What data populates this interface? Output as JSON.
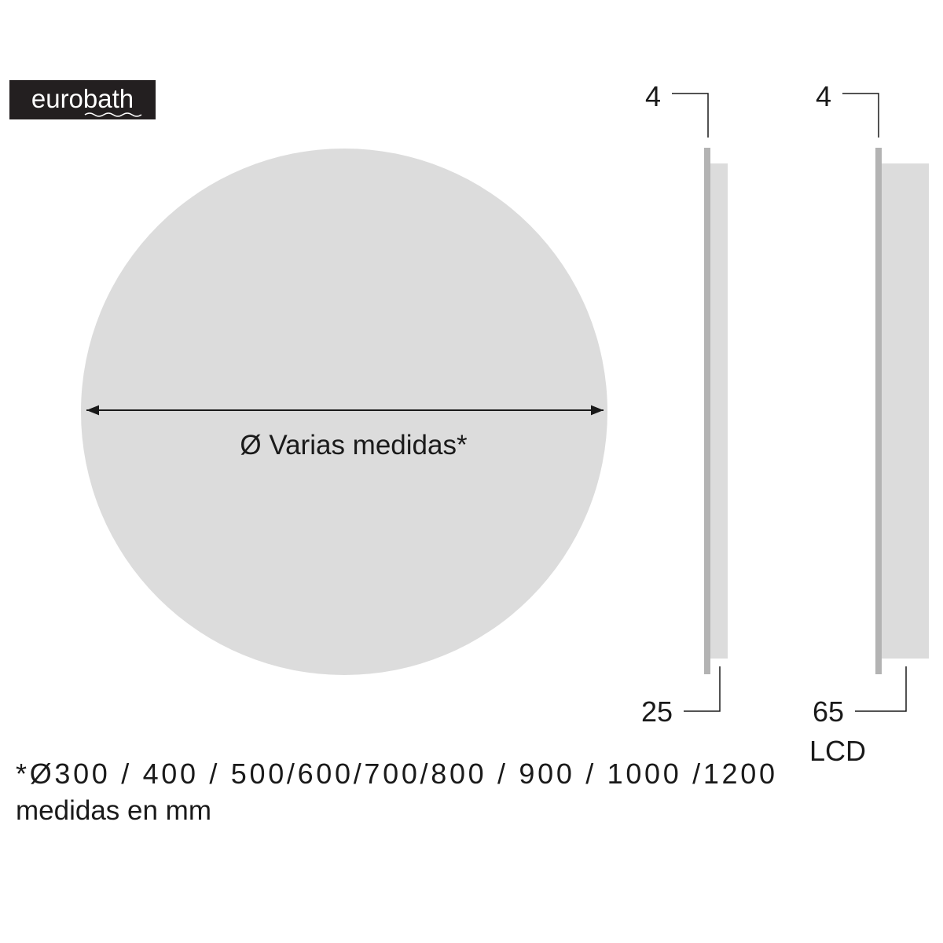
{
  "logo": {
    "text": "eurobath"
  },
  "front_view": {
    "diameter_label": "Ø Varias medidas*"
  },
  "side_view_1": {
    "top_dimension": "4",
    "bottom_dimension": "25"
  },
  "side_view_2": {
    "top_dimension": "4",
    "bottom_dimension": "65",
    "bottom_note": "LCD"
  },
  "footnote": {
    "sizes": "*Ø300 / 400 / 500/600/700/800 / 900 / 1000 /1200",
    "units": "medidas en mm"
  },
  "colors": {
    "panel": "#dcdcdc",
    "edge": "#b3b3b3",
    "line": "#1a1a1a",
    "logo_bg": "#231f20"
  }
}
